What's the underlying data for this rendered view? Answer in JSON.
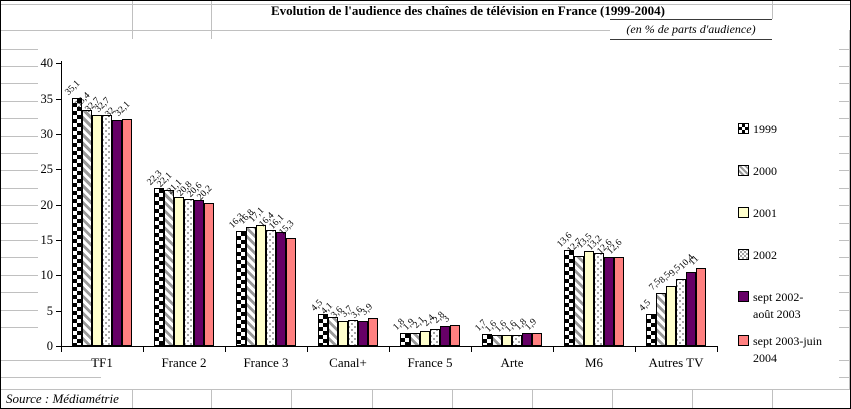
{
  "sheet": {
    "title": "Evolution de l'audience des chaînes de télévision en France (1999-2004)",
    "unit_note": "(en % de parts d'audience)",
    "source_note": "Source : Médiamétrie"
  },
  "chart_data": {
    "type": "bar",
    "title": "Evolution de l'audience des chaînes de télévision en France (1999-2004)",
    "subtitle": "(en % de parts d'audience)",
    "source": "Source : Médiamétrie",
    "categories": [
      "TF1",
      "France 2",
      "France 3",
      "Canal+",
      "France 5",
      "Arte",
      "M6",
      "Autres TV"
    ],
    "series": [
      {
        "name": "1999",
        "legend_lines": [
          "1999"
        ],
        "pattern": "black-diamond-check",
        "fill": "#000000",
        "values": [
          35.1,
          22.3,
          16.3,
          4.5,
          1.8,
          1.7,
          13.6,
          4.5
        ]
      },
      {
        "name": "2000",
        "legend_lines": [
          "2000"
        ],
        "pattern": "gray-diagonal-stripes",
        "fill": "#9a9a9a",
        "values": [
          33.4,
          22.1,
          16.8,
          4.1,
          1.9,
          1.6,
          12.7,
          7.5
        ]
      },
      {
        "name": "2001",
        "legend_lines": [
          "2001"
        ],
        "pattern": "solid",
        "fill": "#FFFFCC",
        "values": [
          32.7,
          21.1,
          17.1,
          3.6,
          2.1,
          1.6,
          13.5,
          8.5
        ]
      },
      {
        "name": "2002",
        "legend_lines": [
          "2002"
        ],
        "pattern": "gray-dots-on-white",
        "fill": "#8a8a8a",
        "values": [
          32.7,
          20.8,
          16.4,
          3.7,
          2.4,
          1.6,
          13.2,
          9.5
        ]
      },
      {
        "name": "sept 2002-août 2003",
        "legend_lines": [
          "sept 2002-",
          "août 2003"
        ],
        "pattern": "solid",
        "fill": "#660066",
        "values": [
          32,
          20.6,
          16.1,
          3.6,
          2.8,
          1.8,
          12.6,
          10.4
        ]
      },
      {
        "name": "sept 2003-juin 2004",
        "legend_lines": [
          "sept 2003-juin",
          "2004"
        ],
        "pattern": "solid",
        "fill": "#FF8080",
        "values": [
          32.1,
          20.2,
          15.3,
          3.9,
          3,
          1.9,
          12.6,
          11
        ]
      }
    ],
    "xlabel": "",
    "ylabel": "",
    "ylim": [
      0,
      40
    ],
    "yticks": [
      0,
      5,
      10,
      15,
      20,
      25,
      30,
      35,
      40
    ],
    "grid": false,
    "legend_position": "right",
    "value_labels": {
      "shown": true,
      "rotation_deg": 45,
      "decimal_separator": ","
    }
  },
  "colors": {
    "series_cream": "#FFFFCC",
    "series_purple": "#660066",
    "series_salmon": "#FF8080",
    "stripe_gray": "#9a9a9a",
    "gridline_gray": "#c0c0c0",
    "axis_black": "#000000"
  }
}
